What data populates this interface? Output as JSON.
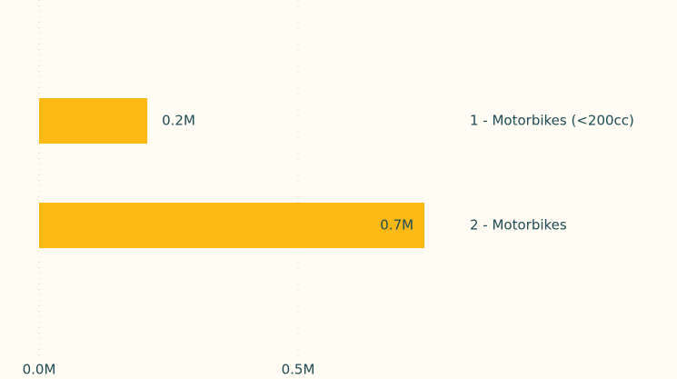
{
  "chart_data": {
    "type": "bar",
    "orientation": "horizontal",
    "categories": [
      "1 - Motorbikes (<200cc)",
      "2 - Motorbikes"
    ],
    "values": [
      209000,
      744000
    ],
    "value_labels": [
      "0.2M",
      "0.7M"
    ],
    "color": "#fcb813",
    "xlim": [
      0,
      780000
    ],
    "xticks": [
      {
        "value": 0,
        "label": "0.0M"
      },
      {
        "value": 500000,
        "label": "0.5M"
      }
    ],
    "grid": true
  }
}
